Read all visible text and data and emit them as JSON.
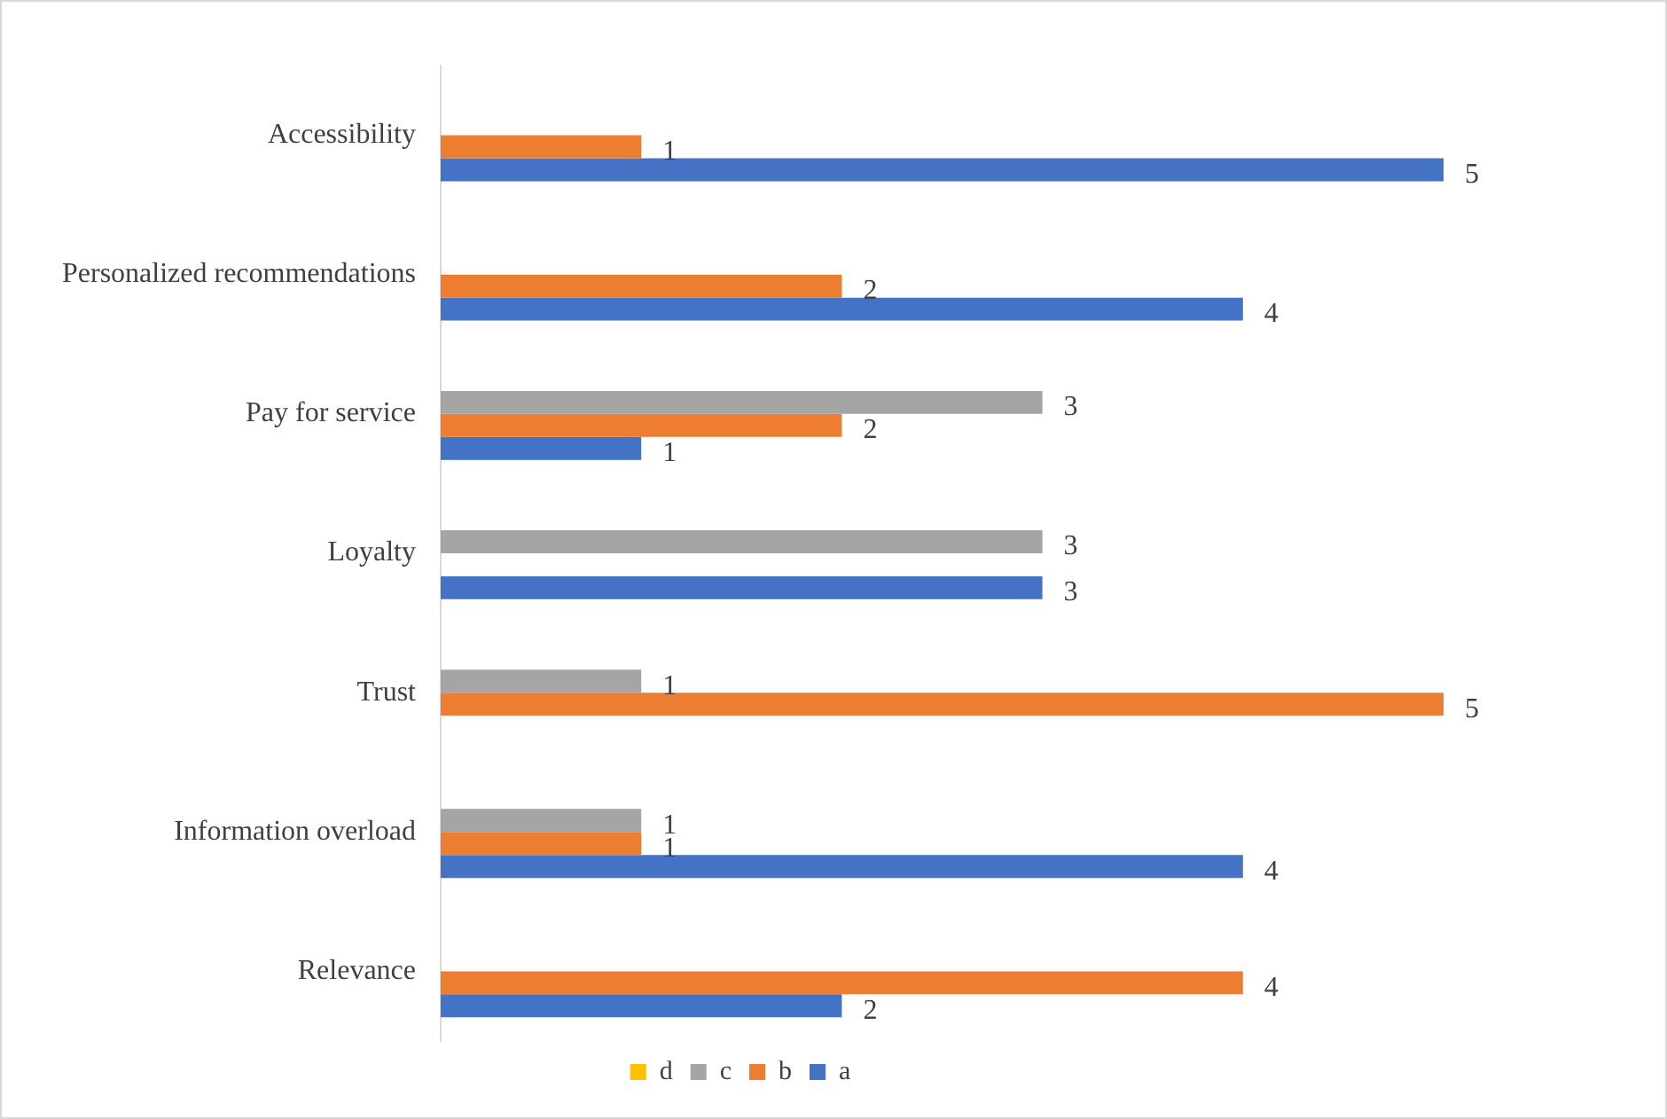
{
  "chart_data": {
    "type": "bar",
    "orientation": "horizontal",
    "categories": [
      "Accessibility",
      "Personalized recommendations",
      "Pay for service",
      "Loyalty",
      "Trust",
      "Information overload",
      "Relevance"
    ],
    "series": [
      {
        "name": "d",
        "color": "#ffc000",
        "values": [
          null,
          null,
          null,
          null,
          null,
          null,
          null
        ]
      },
      {
        "name": "c",
        "color": "#a5a5a5",
        "values": [
          null,
          null,
          3,
          3,
          1,
          1,
          null
        ]
      },
      {
        "name": "b",
        "color": "#ed7d31",
        "values": [
          1,
          2,
          2,
          null,
          5,
          1,
          4
        ]
      },
      {
        "name": "a",
        "color": "#4472c4",
        "values": [
          5,
          4,
          1,
          3,
          null,
          4,
          2
        ]
      }
    ],
    "xlim": [
      0,
      5
    ],
    "tick_labels": "y",
    "grid": false,
    "data_labels": true,
    "legend": "bottom"
  }
}
